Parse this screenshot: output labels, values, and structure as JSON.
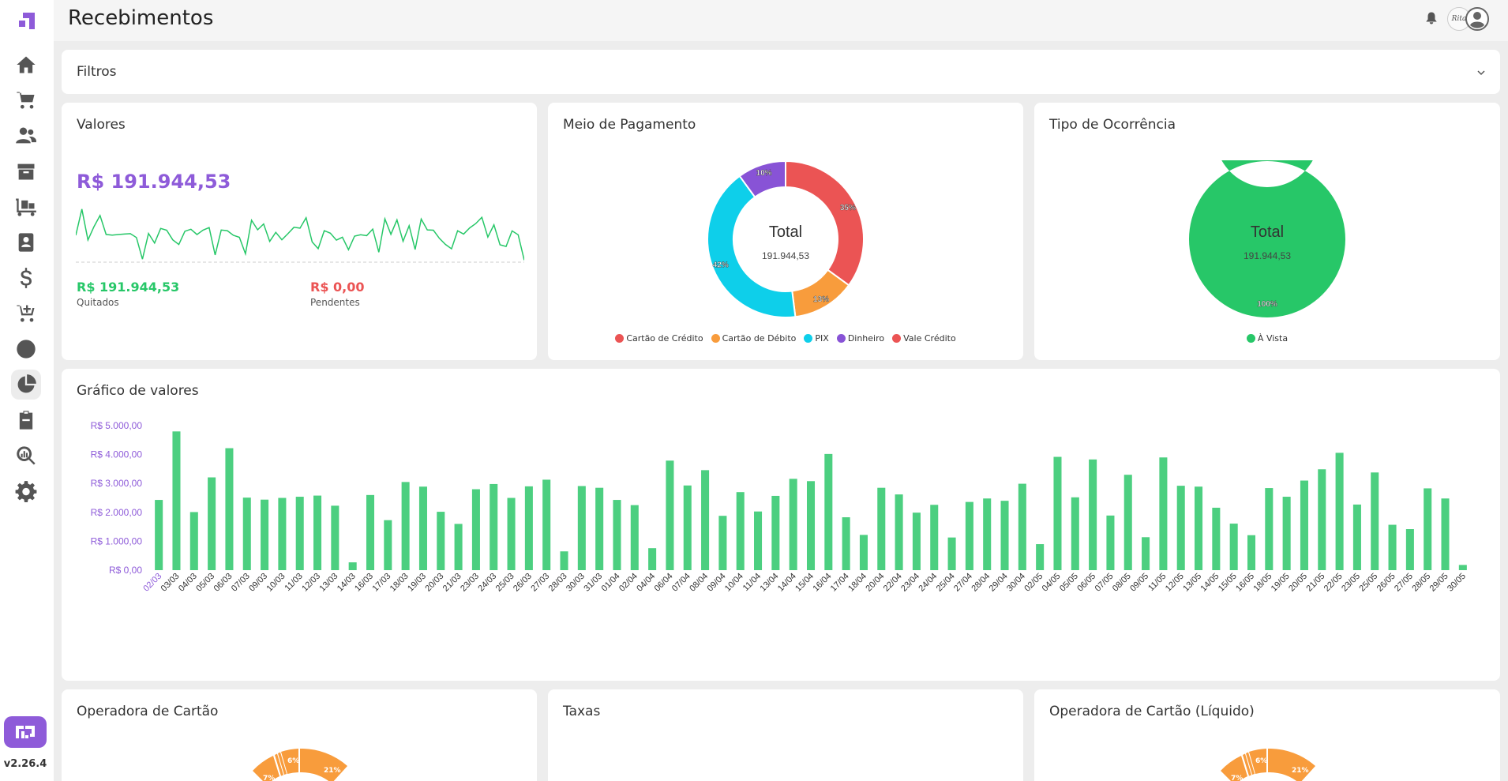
{
  "app": {
    "title": "Recebimentos",
    "version": "v2.26.4"
  },
  "sidebar": {
    "items": [
      {
        "icon": "home-icon"
      },
      {
        "icon": "cart-icon"
      },
      {
        "icon": "users-icon"
      },
      {
        "icon": "box-icon"
      },
      {
        "icon": "dolly-icon"
      },
      {
        "icon": "contact-book-icon"
      },
      {
        "icon": "dollar-icon"
      },
      {
        "icon": "cart-plus-icon"
      },
      {
        "icon": "globe-icon"
      },
      {
        "icon": "pie-chart-icon",
        "active": true
      },
      {
        "icon": "clipboard-icon"
      },
      {
        "icon": "search-chart-icon"
      },
      {
        "icon": "gear-icon"
      }
    ]
  },
  "header": {
    "avatar_text": "Rita"
  },
  "filters": {
    "label": "Filtros"
  },
  "valores": {
    "title": "Valores",
    "total": "R$ 191.944,53",
    "quitados_value": "R$ 191.944,53",
    "quitados_label": "Quitados",
    "pendentes_value": "R$ 0,00",
    "pendentes_label": "Pendentes"
  },
  "meio_pagamento": {
    "title": "Meio de Pagamento",
    "center_label": "Total",
    "center_value": "191.944,53",
    "slices": [
      {
        "name": "Cartão de Crédito",
        "pct": 35,
        "label": "35%",
        "color": "#eb5454"
      },
      {
        "name": "Cartão de Débito",
        "pct": 13,
        "label": "13%",
        "color": "#f89c3c"
      },
      {
        "name": "PIX",
        "pct": 42,
        "label": "42%",
        "color": "#0ecfea"
      },
      {
        "name": "Dinheiro",
        "pct": 10,
        "label": "10%",
        "color": "#8853d6"
      }
    ],
    "legend": [
      {
        "name": "Cartão de Crédito",
        "color": "#eb5454"
      },
      {
        "name": "Cartão de Débito",
        "color": "#f89c3c"
      },
      {
        "name": "PIX",
        "color": "#0ecfea"
      },
      {
        "name": "Dinheiro",
        "color": "#8853d6"
      },
      {
        "name": "Vale Crédito",
        "color": "#eb5454"
      }
    ]
  },
  "tipo_ocorrencia": {
    "title": "Tipo de Ocorrência",
    "center_label": "Total",
    "center_value": "191.944,53",
    "slices": [
      {
        "name": "À Vista",
        "pct": 100,
        "label": "100%",
        "color": "#27c768"
      }
    ],
    "legend": [
      {
        "name": "À Vista",
        "color": "#27c768"
      }
    ]
  },
  "grafico": {
    "title": "Gráfico de valores"
  },
  "operadora": {
    "title": "Operadora de Cartão",
    "labels": [
      "7%",
      "6%",
      "21%"
    ]
  },
  "taxas": {
    "title": "Taxas"
  },
  "operadora_liq": {
    "title": "Operadora de Cartão (Líquido)",
    "labels": [
      "7%",
      "6%",
      "21%"
    ]
  },
  "colors": {
    "accent": "#8e5bd9",
    "green": "#27c768",
    "red": "#eb5454",
    "bar": "#4ccf80"
  },
  "chart_data": {
    "type": "bar",
    "ylim": [
      0,
      5000
    ],
    "y_ticks": [
      "R$ 0,00",
      "R$ 1.000,00",
      "R$ 2.000,00",
      "R$ 3.000,00",
      "R$ 4.000,00",
      "R$ 5.000,00"
    ],
    "categories": [
      "02/03",
      "03/03",
      "04/03",
      "05/03",
      "06/03",
      "07/03",
      "09/03",
      "10/03",
      "11/03",
      "12/03",
      "13/03",
      "14/03",
      "16/03",
      "17/03",
      "18/03",
      "19/03",
      "20/03",
      "21/03",
      "23/03",
      "24/03",
      "25/03",
      "26/03",
      "27/03",
      "28/03",
      "30/03",
      "31/03",
      "01/04",
      "02/04",
      "04/04",
      "06/04",
      "07/04",
      "08/04",
      "09/04",
      "10/04",
      "11/04",
      "13/04",
      "14/04",
      "15/04",
      "16/04",
      "17/04",
      "18/04",
      "20/04",
      "22/04",
      "23/04",
      "24/04",
      "25/04",
      "27/04",
      "28/04",
      "29/04",
      "30/04",
      "02/05",
      "04/05",
      "05/05",
      "06/05",
      "07/05",
      "08/05",
      "09/05",
      "11/05",
      "12/05",
      "13/05",
      "14/05",
      "15/05",
      "16/05",
      "18/05",
      "19/05",
      "20/05",
      "21/05",
      "22/05",
      "23/05",
      "25/05",
      "26/05",
      "27/05",
      "28/05",
      "29/05",
      "30/05"
    ],
    "values": [
      2430,
      4800,
      2010,
      3210,
      4220,
      2510,
      2440,
      2500,
      2540,
      2580,
      2230,
      270,
      2600,
      1730,
      3050,
      2890,
      2020,
      1600,
      2800,
      2980,
      2500,
      2900,
      3130,
      650,
      2910,
      2850,
      2430,
      2250,
      760,
      3790,
      2930,
      3460,
      1880,
      2700,
      2030,
      2570,
      3160,
      3080,
      4020,
      1830,
      1220,
      2850,
      2620,
      1990,
      2260,
      1130,
      2360,
      2480,
      2400,
      2990,
      900,
      3920,
      2520,
      3830,
      1890,
      3300,
      1140,
      3900,
      2920,
      2890,
      2160,
      1610,
      1210,
      2840,
      2540,
      3100,
      3490,
      4060,
      2270,
      3380,
      1570,
      1420,
      2830,
      2480,
      180
    ]
  },
  "sparkline_data": {
    "values": [
      2430,
      4800,
      2010,
      3210,
      4220,
      2510,
      2440,
      2500,
      2540,
      2580,
      2230,
      270,
      2600,
      1730,
      3050,
      2890,
      2020,
      1600,
      2800,
      2980,
      2500,
      2900,
      3130,
      650,
      2910,
      2850,
      2430,
      2250,
      760,
      3790,
      2930,
      3460,
      1880,
      2700,
      2030,
      2570,
      3160,
      3080,
      4020,
      1830,
      1220,
      2850,
      2620,
      1990,
      2260,
      1130,
      2360,
      2480,
      2400,
      2990,
      900,
      3920,
      2520,
      3830,
      1890,
      3300,
      1140,
      3900,
      2920,
      2890,
      2160,
      1610,
      1210,
      2840,
      2540,
      3100,
      3490,
      4060,
      2270,
      3380,
      1570,
      1420,
      2830,
      2480,
      180
    ]
  }
}
